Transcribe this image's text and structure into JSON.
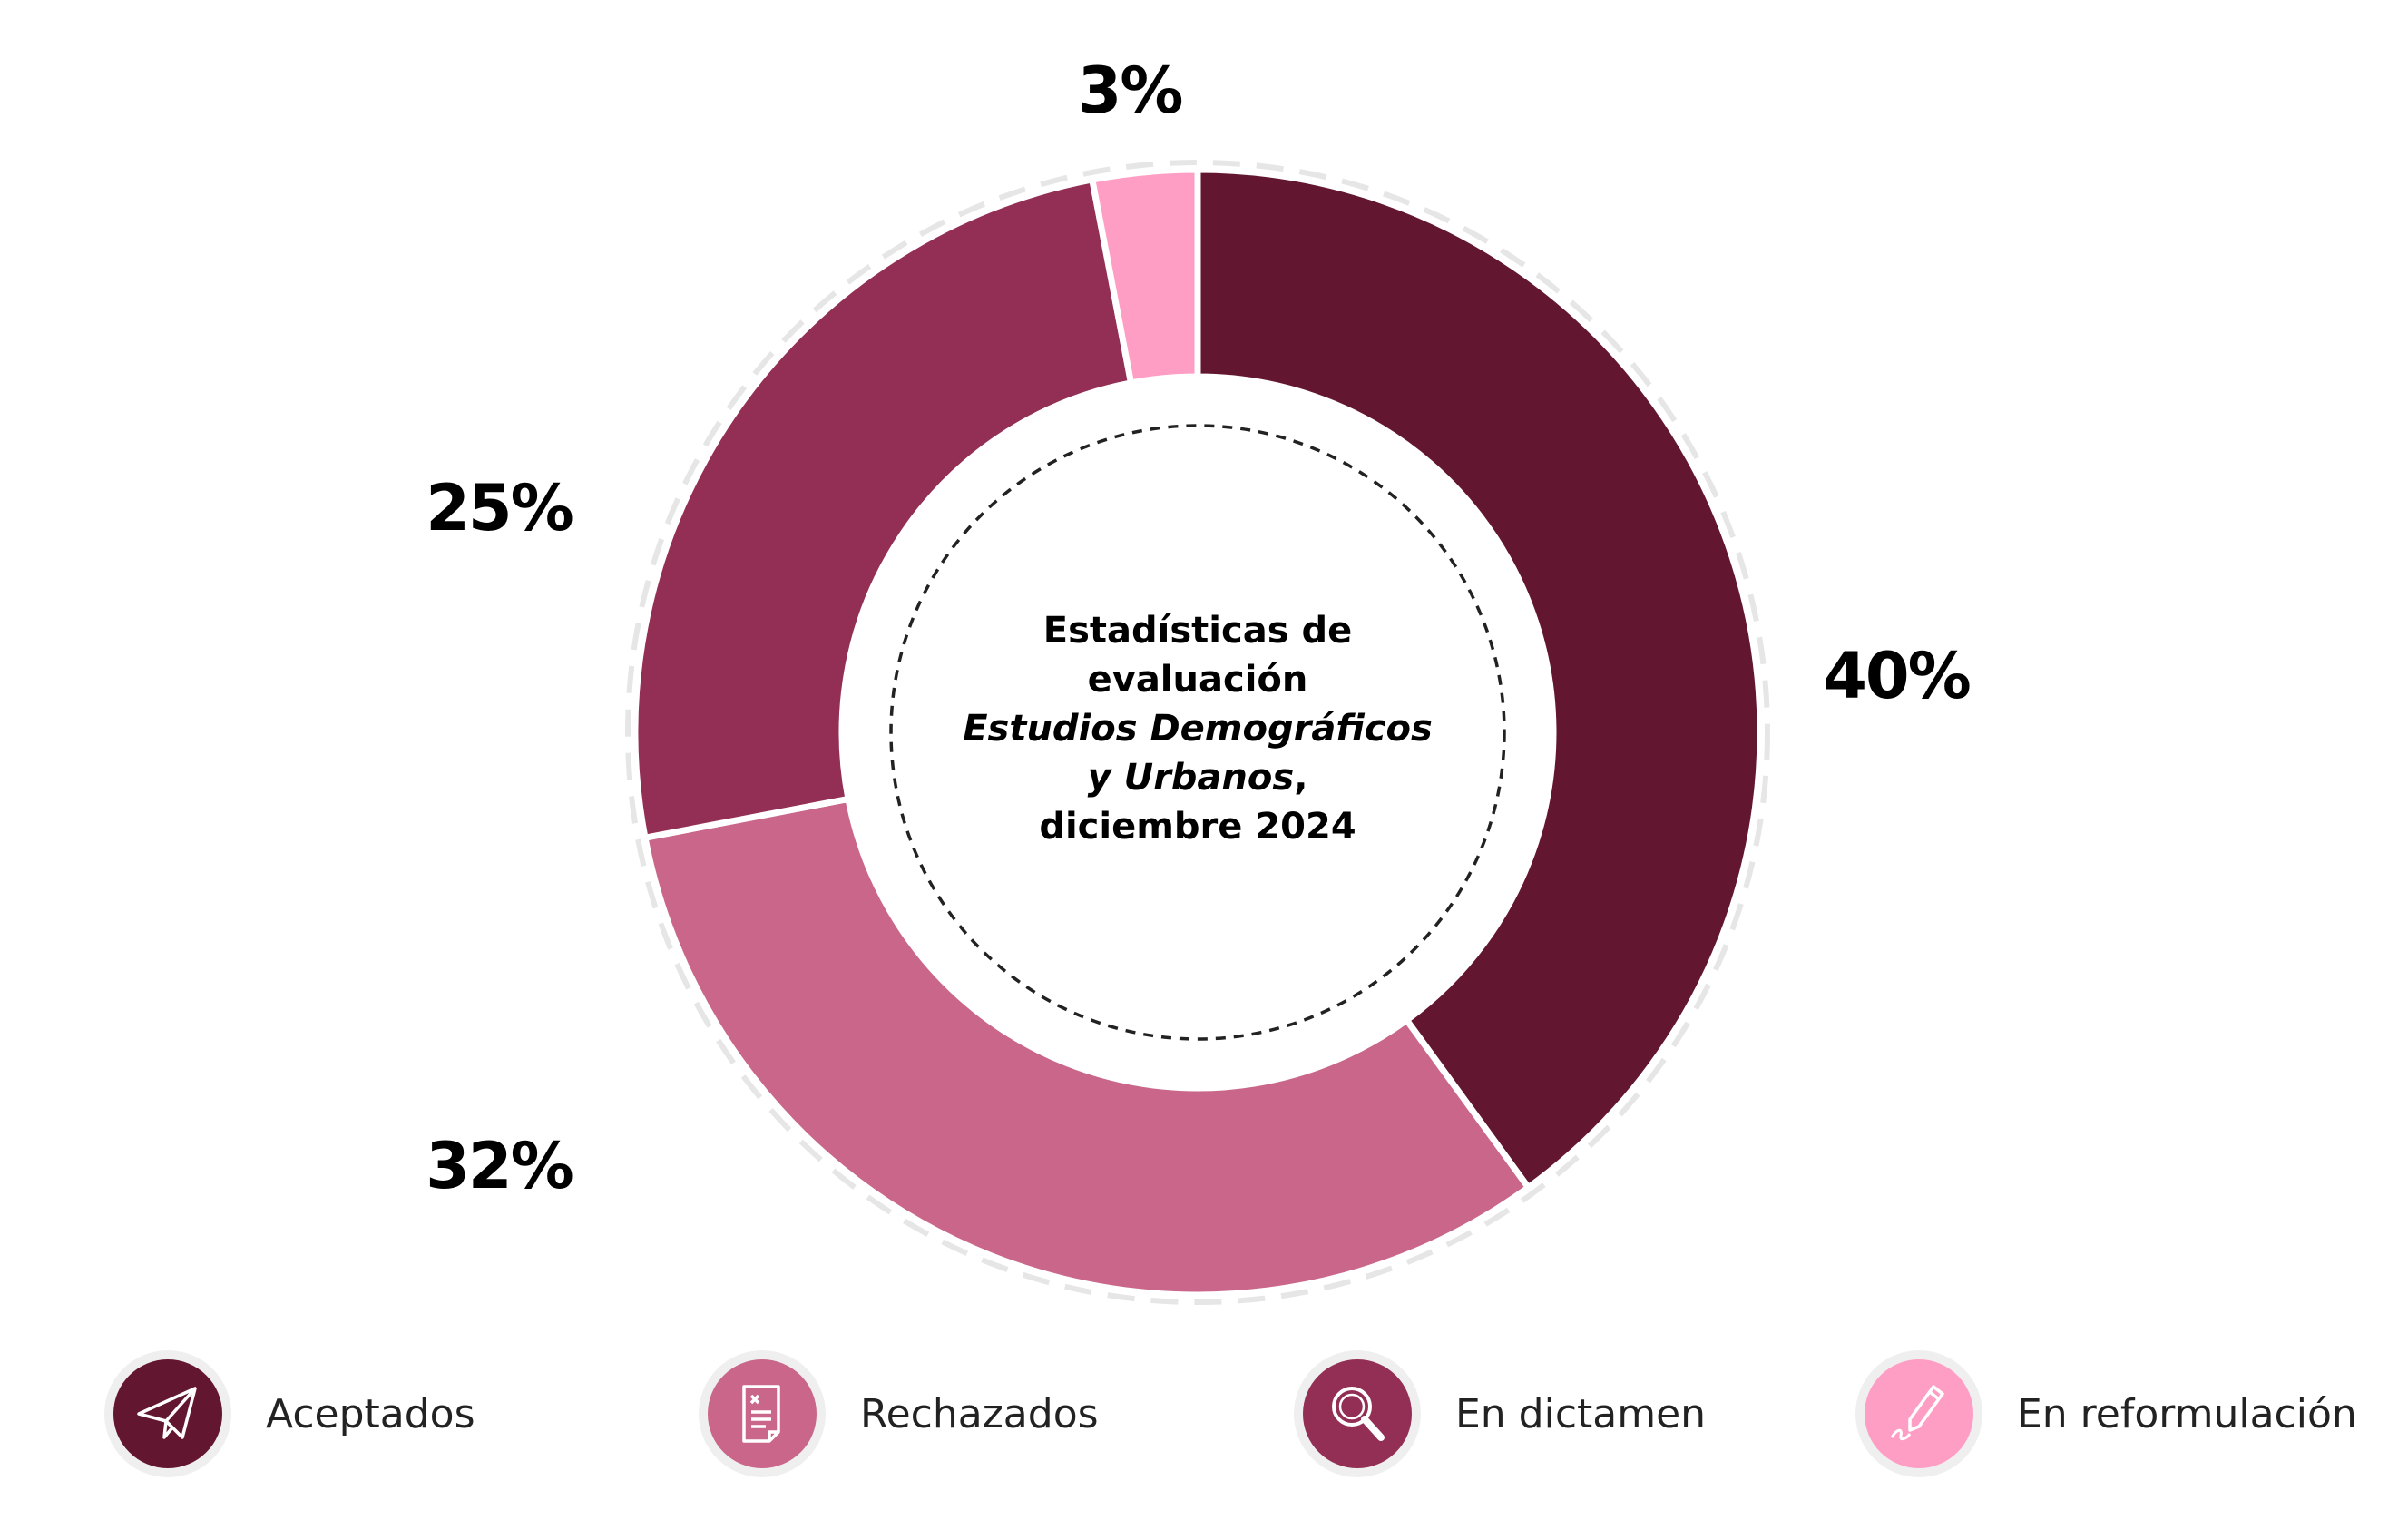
{
  "chart_data": {
    "type": "pie",
    "donut": true,
    "title_lines": [
      "Estadísticas de",
      "evaluación"
    ],
    "title_italic_lines": [
      "Estudios Demográficos",
      "y Urbanos"
    ],
    "title_italic_suffix": ",",
    "title_date": "diciembre 2024",
    "slices": [
      {
        "name": "Aceptados",
        "value": 40,
        "label": "40%",
        "color": "#63162f"
      },
      {
        "name": "Rechazados",
        "value": 32,
        "label": "32%",
        "color": "#c9668a"
      },
      {
        "name": "En dictamen",
        "value": 25,
        "label": "25%",
        "color": "#932e55"
      },
      {
        "name": "En reformulación",
        "value": 3,
        "label": "3%",
        "color": "#ff9ec4"
      }
    ]
  },
  "legend": {
    "items": [
      {
        "label": "Aceptados",
        "icon": "paper-plane-icon",
        "color": "#63162f"
      },
      {
        "label": "Rechazados",
        "icon": "document-x-icon",
        "color": "#c9668a"
      },
      {
        "label": "En dictamen",
        "icon": "magnifier-icon",
        "color": "#932e55"
      },
      {
        "label": "En reformulación",
        "icon": "pen-signature-icon",
        "color": "#ff9ec4"
      }
    ]
  }
}
